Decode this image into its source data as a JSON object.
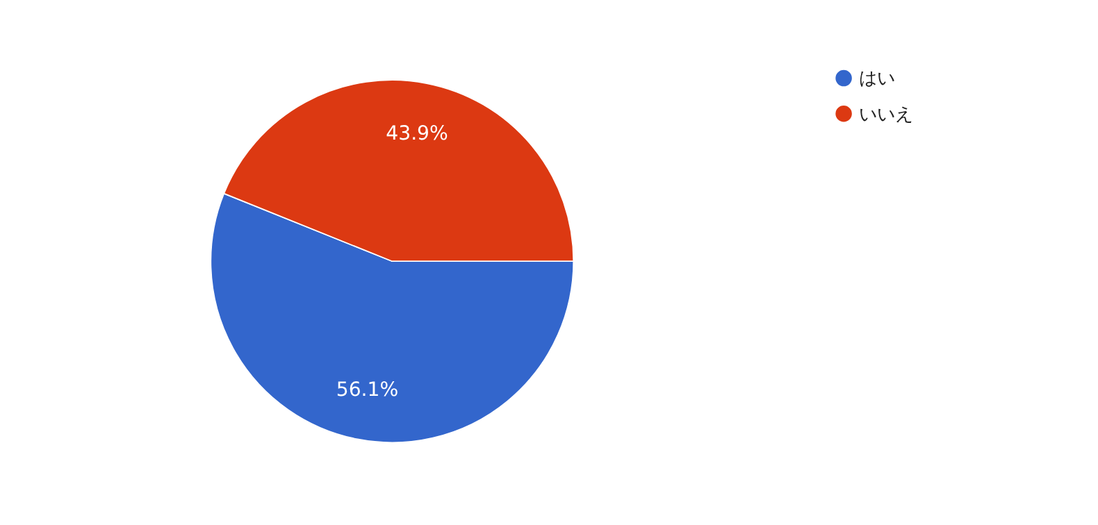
{
  "chart_data": {
    "type": "pie",
    "categories": [
      "はい",
      "いいえ"
    ],
    "values": [
      56.1,
      43.9
    ],
    "colors": [
      "#3366cc",
      "#dc3912"
    ],
    "value_labels": [
      "56.1%",
      "43.9%"
    ],
    "legend": "top right"
  }
}
